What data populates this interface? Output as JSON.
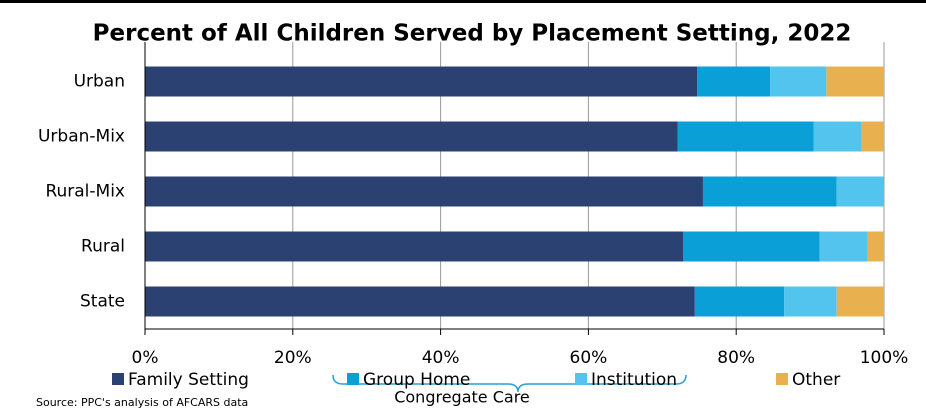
{
  "chart_data": {
    "type": "stacked_barh",
    "title": "Percent of All Children Served by Placement Setting, 2022",
    "categories": [
      "Urban",
      "Urban-Mix",
      "Rural-Mix",
      "Rural",
      "State"
    ],
    "series": [
      {
        "name": "Family Setting",
        "color": "#2b4172",
        "values": [
          74.7,
          72.1,
          75.5,
          72.8,
          74.4
        ]
      },
      {
        "name": "Group Home",
        "color": "#0b9fd8",
        "values": [
          9.9,
          18.4,
          18.1,
          18.5,
          12.1
        ]
      },
      {
        "name": "Institution",
        "color": "#52c4ee",
        "values": [
          7.6,
          6.5,
          6.4,
          6.5,
          7.1
        ]
      },
      {
        "name": "Other",
        "color": "#e9b04f",
        "values": [
          7.8,
          3.0,
          0,
          2.2,
          6.4
        ]
      }
    ],
    "xlim": [
      0,
      100
    ],
    "xticks": [
      {
        "value": 0,
        "label": "0%"
      },
      {
        "value": 20,
        "label": "20%"
      },
      {
        "value": 40,
        "label": "40%"
      },
      {
        "value": 60,
        "label": "60%"
      },
      {
        "value": 80,
        "label": "80%"
      },
      {
        "value": 100,
        "label": "100%"
      }
    ],
    "grid": true,
    "annotation": "Congregate Care",
    "source": "Source: PPC's analysis of AFCARS data"
  }
}
